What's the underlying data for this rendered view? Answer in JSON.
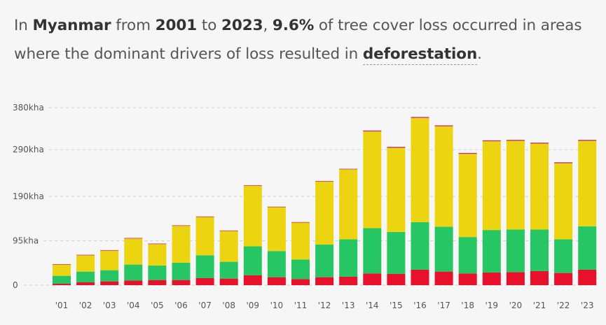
{
  "headline": {
    "p1": "In ",
    "country": "Myanmar",
    "p2": " from ",
    "start_year": "2001",
    "p3": " to ",
    "end_year": "2023",
    "p4": ", ",
    "percent": "9.6%",
    "p5": " of tree cover loss occurred in areas where the dominant drivers of loss resulted in ",
    "driver": "deforestation",
    "p6": "."
  },
  "colors": {
    "red": "#e8102a",
    "green": "#26c665",
    "yellow": "#ecd510",
    "cap": "#c4306a",
    "grid": "#cfcfcf",
    "axis_text": "#555555"
  },
  "chart_data": {
    "type": "bar",
    "stacked": true,
    "categories": [
      "'01",
      "'02",
      "'03",
      "'04",
      "'05",
      "'06",
      "'07",
      "'08",
      "'09",
      "'10",
      "'11",
      "'12",
      "'13",
      "'14",
      "'15",
      "'16",
      "'17",
      "'18",
      "'19",
      "'20",
      "'21",
      "'22",
      "'23"
    ],
    "series": [
      {
        "color": "#e8102a",
        "values": [
          3,
          6,
          8,
          10,
          11,
          11,
          15,
          14,
          21,
          17,
          13,
          17,
          18,
          25,
          24,
          33,
          29,
          25,
          27,
          28,
          30,
          26,
          33
        ]
      },
      {
        "color": "#26c665",
        "values": [
          17,
          23,
          24,
          34,
          31,
          37,
          49,
          36,
          62,
          56,
          42,
          70,
          80,
          97,
          90,
          102,
          96,
          78,
          91,
          91,
          89,
          72,
          93
        ]
      },
      {
        "color": "#ecd510",
        "values": [
          24,
          35,
          42,
          56,
          46,
          79,
          82,
          66,
          130,
          94,
          79,
          135,
          150,
          207,
          180,
          223,
          215,
          178,
          190,
          190,
          184,
          163,
          183
        ]
      },
      {
        "color": "#c4306a",
        "values": [
          1,
          1,
          1,
          1,
          1,
          1,
          1,
          1,
          1,
          1,
          1,
          1,
          1,
          2,
          2,
          2,
          2,
          2,
          2,
          2,
          2,
          2,
          2
        ]
      }
    ],
    "yticks": [
      {
        "value": 0,
        "label": "0"
      },
      {
        "value": 95,
        "label": "95kha"
      },
      {
        "value": 190,
        "label": "190kha"
      },
      {
        "value": 290,
        "label": "290kha"
      },
      {
        "value": 380,
        "label": "380kha"
      }
    ],
    "ylim": [
      0,
      380
    ],
    "grid": true,
    "legend": "none"
  }
}
